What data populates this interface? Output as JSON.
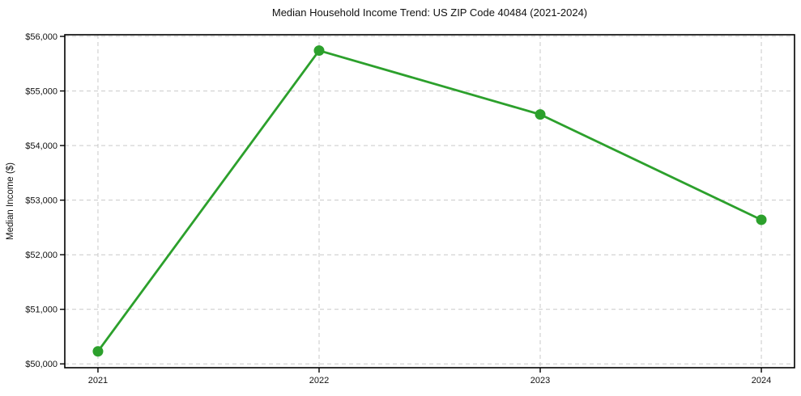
{
  "chart_data": {
    "type": "line",
    "title": "Median Household Income Trend: US ZIP Code 40484 (2021-2024)",
    "xlabel": "",
    "ylabel": "Median Income ($)",
    "categories": [
      "2021",
      "2022",
      "2023",
      "2024"
    ],
    "series": [
      {
        "name": "Median Household Income",
        "values": [
          50230,
          55740,
          54570,
          52640
        ]
      }
    ],
    "yticks": [
      50000,
      51000,
      52000,
      53000,
      54000,
      55000,
      56000
    ],
    "ytick_labels": [
      "$50,000",
      "$51,000",
      "$52,000",
      "$53,000",
      "$54,000",
      "$55,000",
      "$56,000"
    ],
    "ylim": [
      49930,
      56030
    ],
    "grid": true,
    "grid_style": "dashed",
    "legend_position": "none",
    "colors": {
      "line": "#2ca02c",
      "marker": "#2ca02c",
      "grid": "#c9c9c9",
      "frame": "#000000",
      "text": "#111111",
      "background": "#ffffff"
    }
  }
}
